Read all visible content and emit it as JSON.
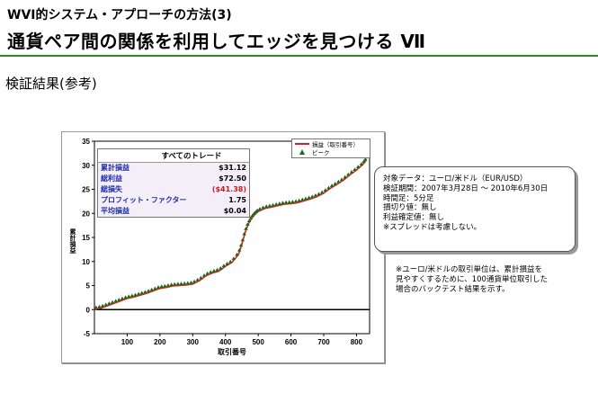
{
  "header": {
    "subtitle": "WVI的システム・アプローチの方法(3)",
    "title": "通貨ペア間の関係を利用してエッジを見つける Ⅶ",
    "section": "検証結果(参考)"
  },
  "stats": {
    "heading": "すべてのトレード",
    "rows": [
      {
        "label": "累計損益",
        "value": "$31.12"
      },
      {
        "label": "総利益",
        "value": "$72.50"
      },
      {
        "label": "総損失",
        "value": "($41.38)"
      },
      {
        "label": "プロフィット・ファクター",
        "value": "1.75"
      },
      {
        "label": "平均損益",
        "value": "$0.04"
      }
    ]
  },
  "legend": {
    "line_label": "損益（取引番号）",
    "marker_label": "ピーク"
  },
  "info": {
    "lines": [
      "対象データ：ユーロ/米ドル（EUR/USD）",
      "検証期間：2007年3月28日 ～ 2010年6月30日",
      "時間足：5分足",
      "損切り値：無し",
      "利益確定値：無し",
      "※スプレッドは考慮しない。"
    ]
  },
  "note": {
    "lines": [
      "※ユーロ/米ドルの取引単位は、累計損益を",
      "見やすくするために、100通貨単位取引した",
      "場合のバックテスト結果を示す。"
    ]
  },
  "colors": {
    "line": "#e02020",
    "peak": "#1a6a1a",
    "rule": "#2e8b20"
  },
  "chart_data": {
    "type": "line",
    "xlabel": "取引番号",
    "ylabel": "累計損益",
    "xlim": [
      0,
      840
    ],
    "ylim": [
      -5,
      35
    ],
    "xticks": [
      100,
      200,
      300,
      400,
      500,
      600,
      700,
      800
    ],
    "yticks": [
      -5,
      0,
      5,
      10,
      15,
      20,
      25,
      30,
      35
    ],
    "series": [
      {
        "name": "損益（取引番号）",
        "x": [
          0,
          20,
          40,
          60,
          80,
          100,
          120,
          140,
          160,
          180,
          200,
          220,
          240,
          260,
          280,
          300,
          320,
          340,
          360,
          380,
          400,
          420,
          440,
          450,
          460,
          470,
          480,
          490,
          500,
          520,
          540,
          560,
          580,
          600,
          620,
          640,
          660,
          680,
          700,
          720,
          740,
          760,
          780,
          800,
          820,
          830
        ],
        "y": [
          0,
          0.3,
          0.8,
          1.3,
          1.8,
          2.3,
          2.6,
          3.0,
          3.4,
          3.9,
          4.4,
          4.6,
          4.9,
          5.0,
          5.1,
          5.3,
          6.0,
          7.0,
          7.6,
          8.0,
          9.0,
          9.8,
          11.5,
          13.5,
          16.0,
          17.8,
          19.0,
          19.8,
          20.4,
          21.0,
          21.3,
          21.6,
          21.9,
          22.0,
          22.2,
          22.6,
          23.0,
          23.5,
          24.2,
          25.2,
          26.0,
          26.9,
          28.0,
          29.0,
          30.2,
          31.1
        ]
      }
    ],
    "legend_position": "top-right",
    "grid": false
  }
}
